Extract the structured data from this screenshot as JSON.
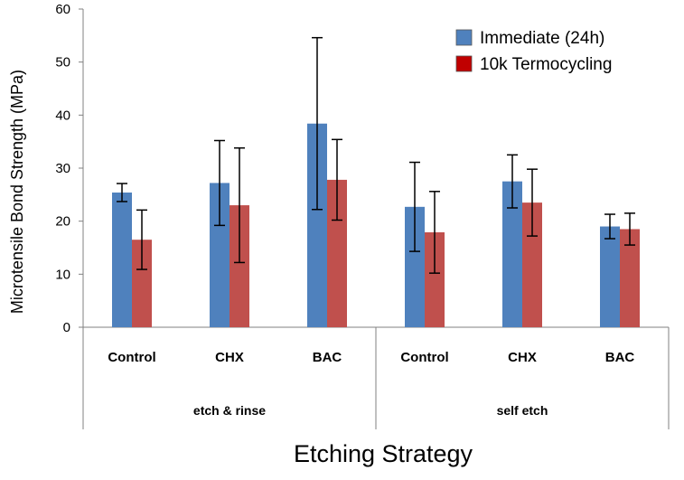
{
  "chart_data": {
    "type": "bar",
    "title": "",
    "xlabel": "Etching Strategy",
    "ylabel": "Microtensile Bond Strength (MPa)",
    "ylim": [
      0,
      60
    ],
    "yticks": [
      "0",
      "10",
      "20",
      "30",
      "40",
      "50",
      "60"
    ],
    "categories": [
      "Control",
      "CHX",
      "BAC",
      "Control",
      "CHX",
      "BAC"
    ],
    "groups": [
      {
        "label": "etch & rinse",
        "categories": [
          "Control",
          "CHX",
          "BAC"
        ]
      },
      {
        "label": "self etch",
        "categories": [
          "Control",
          "CHX",
          "BAC"
        ]
      }
    ],
    "series": [
      {
        "name": "Immediate (24h)",
        "color": "#4F81BD",
        "values": [
          25.4,
          27.2,
          38.4,
          22.7,
          27.5,
          19.0
        ],
        "error": [
          1.7,
          8.0,
          16.2,
          8.4,
          5.0,
          2.3
        ]
      },
      {
        "name": "10k Termocycling",
        "color": "#C0504D",
        "values": [
          16.5,
          23.0,
          27.8,
          17.9,
          23.5,
          18.5
        ],
        "error": [
          5.6,
          10.8,
          7.6,
          7.7,
          6.3,
          3.0
        ]
      }
    ],
    "legend_position": "top-right",
    "legend_swatch_colors": [
      "#4F81BD",
      "#C00000"
    ],
    "grid": false
  }
}
